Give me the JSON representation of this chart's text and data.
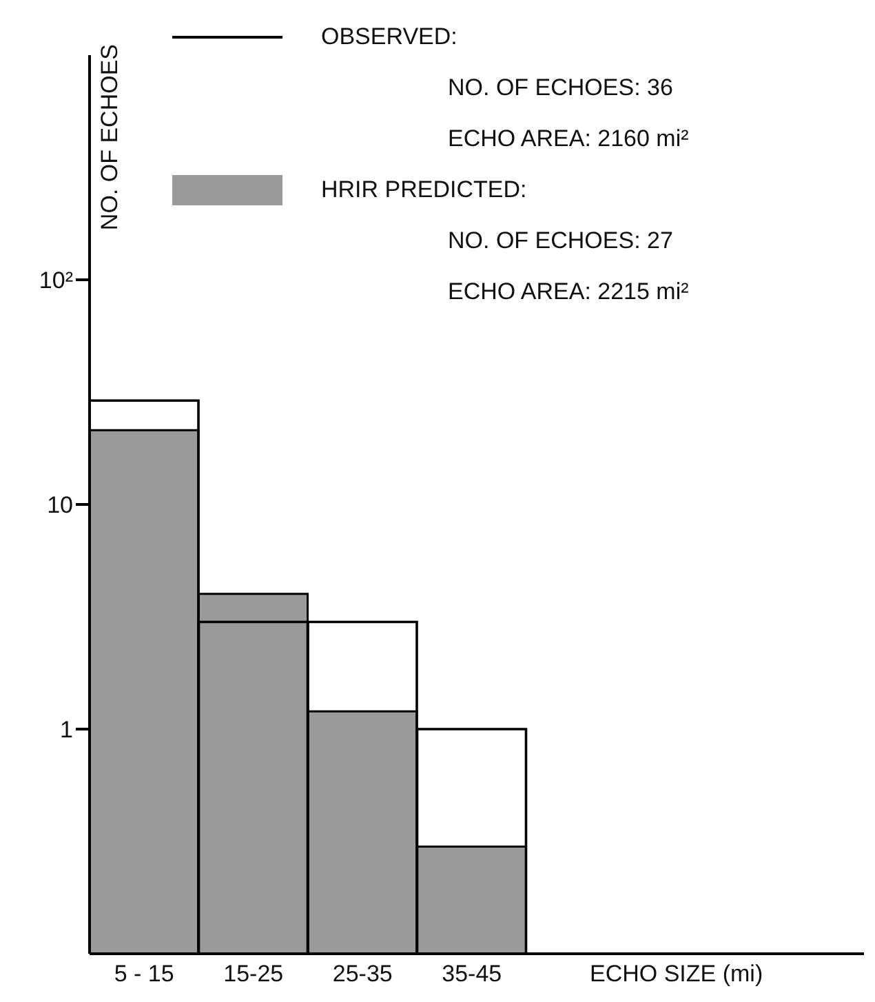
{
  "chart_data": {
    "type": "bar",
    "xlabel": "ECHO SIZE (mi)",
    "ylabel": "NO. OF ECHOES",
    "categories": [
      "5 - 15",
      "15-25",
      "25-35",
      "35-45"
    ],
    "series": [
      {
        "name": "OBSERVED:",
        "color": "#000000",
        "values": [
          29,
          3,
          3,
          1
        ]
      },
      {
        "name": "HRIR PREDICTED:",
        "color": "#9a9a9a",
        "values": [
          21.4,
          4,
          1.2,
          0.3
        ]
      }
    ],
    "log": true,
    "ylim": [
      0.1,
      1000
    ],
    "yticks": [
      1,
      10,
      {
        "value": 100,
        "label": "10²"
      }
    ],
    "legend": "top right",
    "annotations": [
      "NO. OF ECHOES: 36",
      "ECHO AREA: 2160 mi²",
      "NO. OF ECHOES: 27",
      "ECHO AREA: 2215 mi²"
    ]
  }
}
